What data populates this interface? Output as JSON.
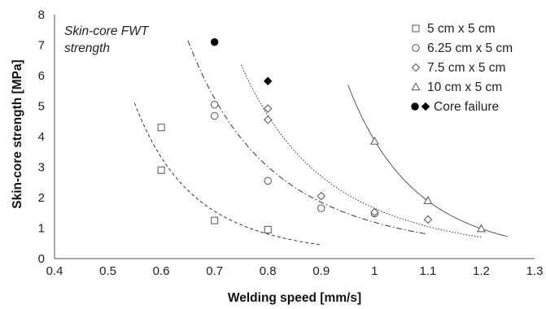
{
  "chart_data": {
    "type": "scatter",
    "annotation": [
      "Skin-core FWT",
      "strength"
    ],
    "xlabel": "Welding speed [mm/s]",
    "ylabel": "Skin-core strength [MPa]",
    "xlim": [
      0.4,
      1.3
    ],
    "ylim": [
      0,
      8
    ],
    "x_ticks": [
      "0.4",
      "0.5",
      "0.6",
      "0.7",
      "0.8",
      "0.9",
      "1",
      "1.1",
      "1.2",
      "1.3"
    ],
    "y_ticks": [
      "0",
      "1",
      "2",
      "3",
      "4",
      "5",
      "6",
      "7",
      "8"
    ],
    "grid": false,
    "legend_position": "top-right",
    "series": [
      {
        "name": "5 cm x 5 cm",
        "marker": "square-open",
        "points": [
          [
            0.6,
            4.3
          ],
          [
            0.6,
            2.9
          ],
          [
            0.7,
            1.25
          ],
          [
            0.8,
            0.95
          ]
        ],
        "trendline": {
          "style": "dashed",
          "x_range": [
            0.55,
            0.9
          ],
          "y_range": [
            5.1,
            0.45
          ]
        }
      },
      {
        "name": "6.25 cm x 5 cm",
        "marker": "circle-open",
        "points": [
          [
            0.7,
            5.05
          ],
          [
            0.7,
            4.68
          ],
          [
            0.8,
            2.55
          ],
          [
            0.9,
            1.65
          ],
          [
            1.0,
            1.48
          ]
        ],
        "trendline": {
          "style": "dash-dot",
          "x_range": [
            0.65,
            1.1
          ],
          "y_range": [
            7.15,
            0.8
          ]
        }
      },
      {
        "name": "7.5 cm x 5 cm",
        "marker": "diamond-open",
        "points": [
          [
            0.8,
            4.92
          ],
          [
            0.8,
            4.55
          ],
          [
            0.9,
            2.05
          ],
          [
            1.0,
            1.52
          ],
          [
            1.1,
            1.28
          ]
        ],
        "trendline": {
          "style": "dotted",
          "x_range": [
            0.75,
            1.2
          ],
          "y_range": [
            6.35,
            0.7
          ]
        }
      },
      {
        "name": "10 cm x 5 cm",
        "marker": "triangle-open",
        "points": [
          [
            1.0,
            3.85
          ],
          [
            1.1,
            1.9
          ],
          [
            1.2,
            0.98
          ]
        ],
        "trendline": {
          "style": "solid-thin",
          "x_range": [
            0.95,
            1.25
          ],
          "y_range": [
            5.7,
            0.72
          ]
        }
      }
    ],
    "core_failure": {
      "name": "Core failure",
      "points": [
        {
          "x": 0.7,
          "y": 7.1,
          "marker": "circle-filled"
        },
        {
          "x": 0.8,
          "y": 5.82,
          "marker": "diamond-filled"
        }
      ]
    },
    "colors": {
      "markers": "#555555",
      "filled": "#000000",
      "trendline": "#333333",
      "axis": "#555555"
    }
  }
}
